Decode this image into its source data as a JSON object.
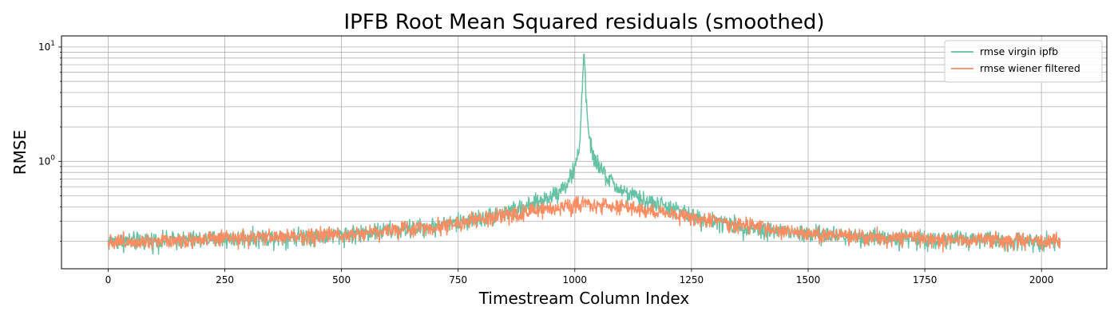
{
  "chart_data": {
    "type": "line",
    "title": "IPFB Root Mean Squared residuals (smoothed)",
    "xlabel": "Timestream Column Index",
    "ylabel": "RMSE",
    "xlim": [
      -100,
      2140
    ],
    "ylim": [
      0.115,
      12.5
    ],
    "y_scale": "log",
    "grid": true,
    "grid_minor_y": true,
    "legend_position": "top-right",
    "x_ticks": [
      0,
      250,
      500,
      750,
      1000,
      1250,
      1500,
      1750,
      2000
    ],
    "x_tick_labels": [
      "0",
      "250",
      "500",
      "750",
      "1000",
      "1250",
      "1500",
      "1750",
      "2000"
    ],
    "y_ticks": [
      {
        "value": 1,
        "base": "10",
        "exp": "0"
      },
      {
        "value": 10,
        "base": "10",
        "exp": "1"
      }
    ],
    "n_points": 2041,
    "series": [
      {
        "name": "rmse virgin ipfb",
        "color": "#66c2a5",
        "profile_x": [
          0,
          250,
          500,
          700,
          800,
          900,
          950,
          980,
          1000,
          1010,
          1015,
          1020,
          1025,
          1030,
          1040,
          1060,
          1080,
          1100,
          1150,
          1200,
          1250,
          1350,
          1500,
          1750,
          2040
        ],
        "profile_y": [
          0.2,
          0.21,
          0.23,
          0.27,
          0.32,
          0.4,
          0.5,
          0.62,
          0.85,
          1.4,
          3.5,
          9.8,
          3.0,
          1.6,
          1.1,
          0.8,
          0.65,
          0.55,
          0.45,
          0.4,
          0.33,
          0.27,
          0.23,
          0.21,
          0.2
        ],
        "noise": 0.09
      },
      {
        "name": "rmse wiener filtered",
        "color": "#fc8d62",
        "profile_x": [
          0,
          250,
          500,
          700,
          800,
          900,
          1000,
          1020,
          1100,
          1200,
          1300,
          1500,
          1750,
          2040
        ],
        "profile_y": [
          0.2,
          0.21,
          0.23,
          0.27,
          0.31,
          0.36,
          0.42,
          0.43,
          0.4,
          0.35,
          0.3,
          0.23,
          0.21,
          0.2
        ],
        "noise": 0.08
      }
    ]
  }
}
